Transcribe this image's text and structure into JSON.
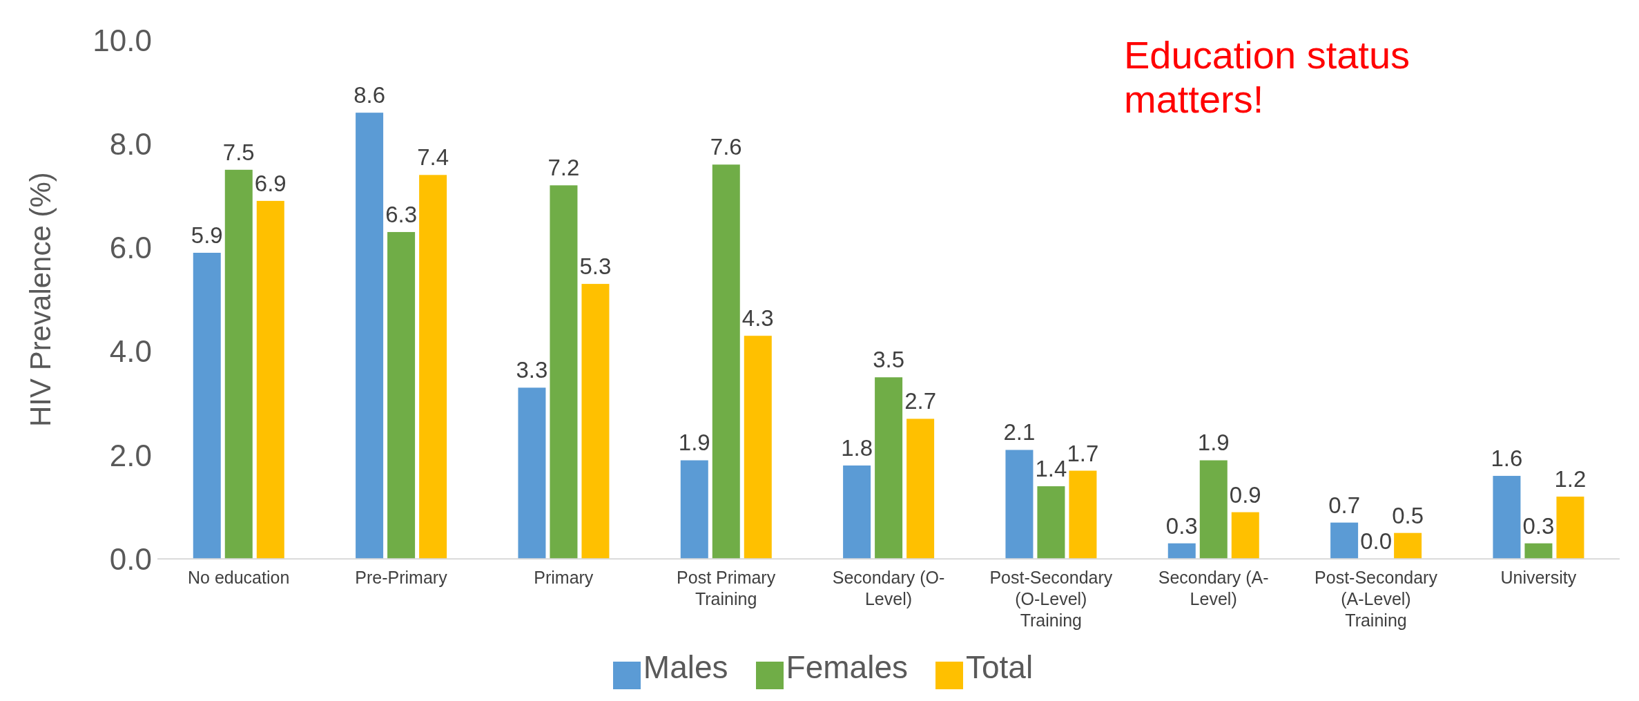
{
  "chart_data": {
    "type": "bar",
    "ylabel": "HIV Prevalence (%)",
    "annotations": [
      "Education status matters!"
    ],
    "categories": [
      "No education",
      "Pre-Primary",
      "Primary",
      "Post Primary Training",
      "Secondary (O-Level)",
      "Post-Secondary (O-Level) Training",
      "Secondary (A-Level)",
      "Post-Secondary (A-Level) Training",
      "University"
    ],
    "series": [
      {
        "name": "Males",
        "color": "#5b9bd5",
        "values": [
          5.9,
          8.6,
          3.3,
          1.9,
          1.8,
          2.1,
          0.3,
          0.7,
          1.6
        ],
        "value_labels": [
          "5.9",
          "8.6",
          "3.3",
          "1.9",
          "1.8",
          "2.1",
          "0.3",
          "0.7",
          "1.6"
        ]
      },
      {
        "name": "Females",
        "color": "#70ad47",
        "values": [
          7.5,
          6.3,
          7.2,
          7.6,
          3.5,
          1.4,
          1.9,
          0,
          0.3
        ],
        "value_labels": [
          "7.5",
          "6.3",
          "7.2",
          "7.6",
          "3.5",
          "1.4",
          "1.9",
          "0.0",
          "0.3"
        ]
      },
      {
        "name": "Total",
        "color": "#ffc000",
        "values": [
          6.9,
          7.4,
          5.3,
          4.3,
          2.7,
          1.7,
          0.9,
          0.5,
          1.2
        ],
        "value_labels": [
          "6.9",
          "7.4",
          "5.3",
          "4.3",
          "2.7",
          "1.7",
          "0.9",
          "0.5",
          "1.2"
        ]
      }
    ],
    "ylim": [
      0,
      10
    ],
    "yticks": [
      {
        "value": 0,
        "label": "0.0"
      },
      {
        "value": 2,
        "label": "2.0"
      },
      {
        "value": 4,
        "label": "4.0"
      },
      {
        "value": 6,
        "label": "6.0"
      },
      {
        "value": 8,
        "label": "8.0"
      },
      {
        "value": 10,
        "label": "10.0"
      }
    ],
    "legend": "bottom"
  }
}
